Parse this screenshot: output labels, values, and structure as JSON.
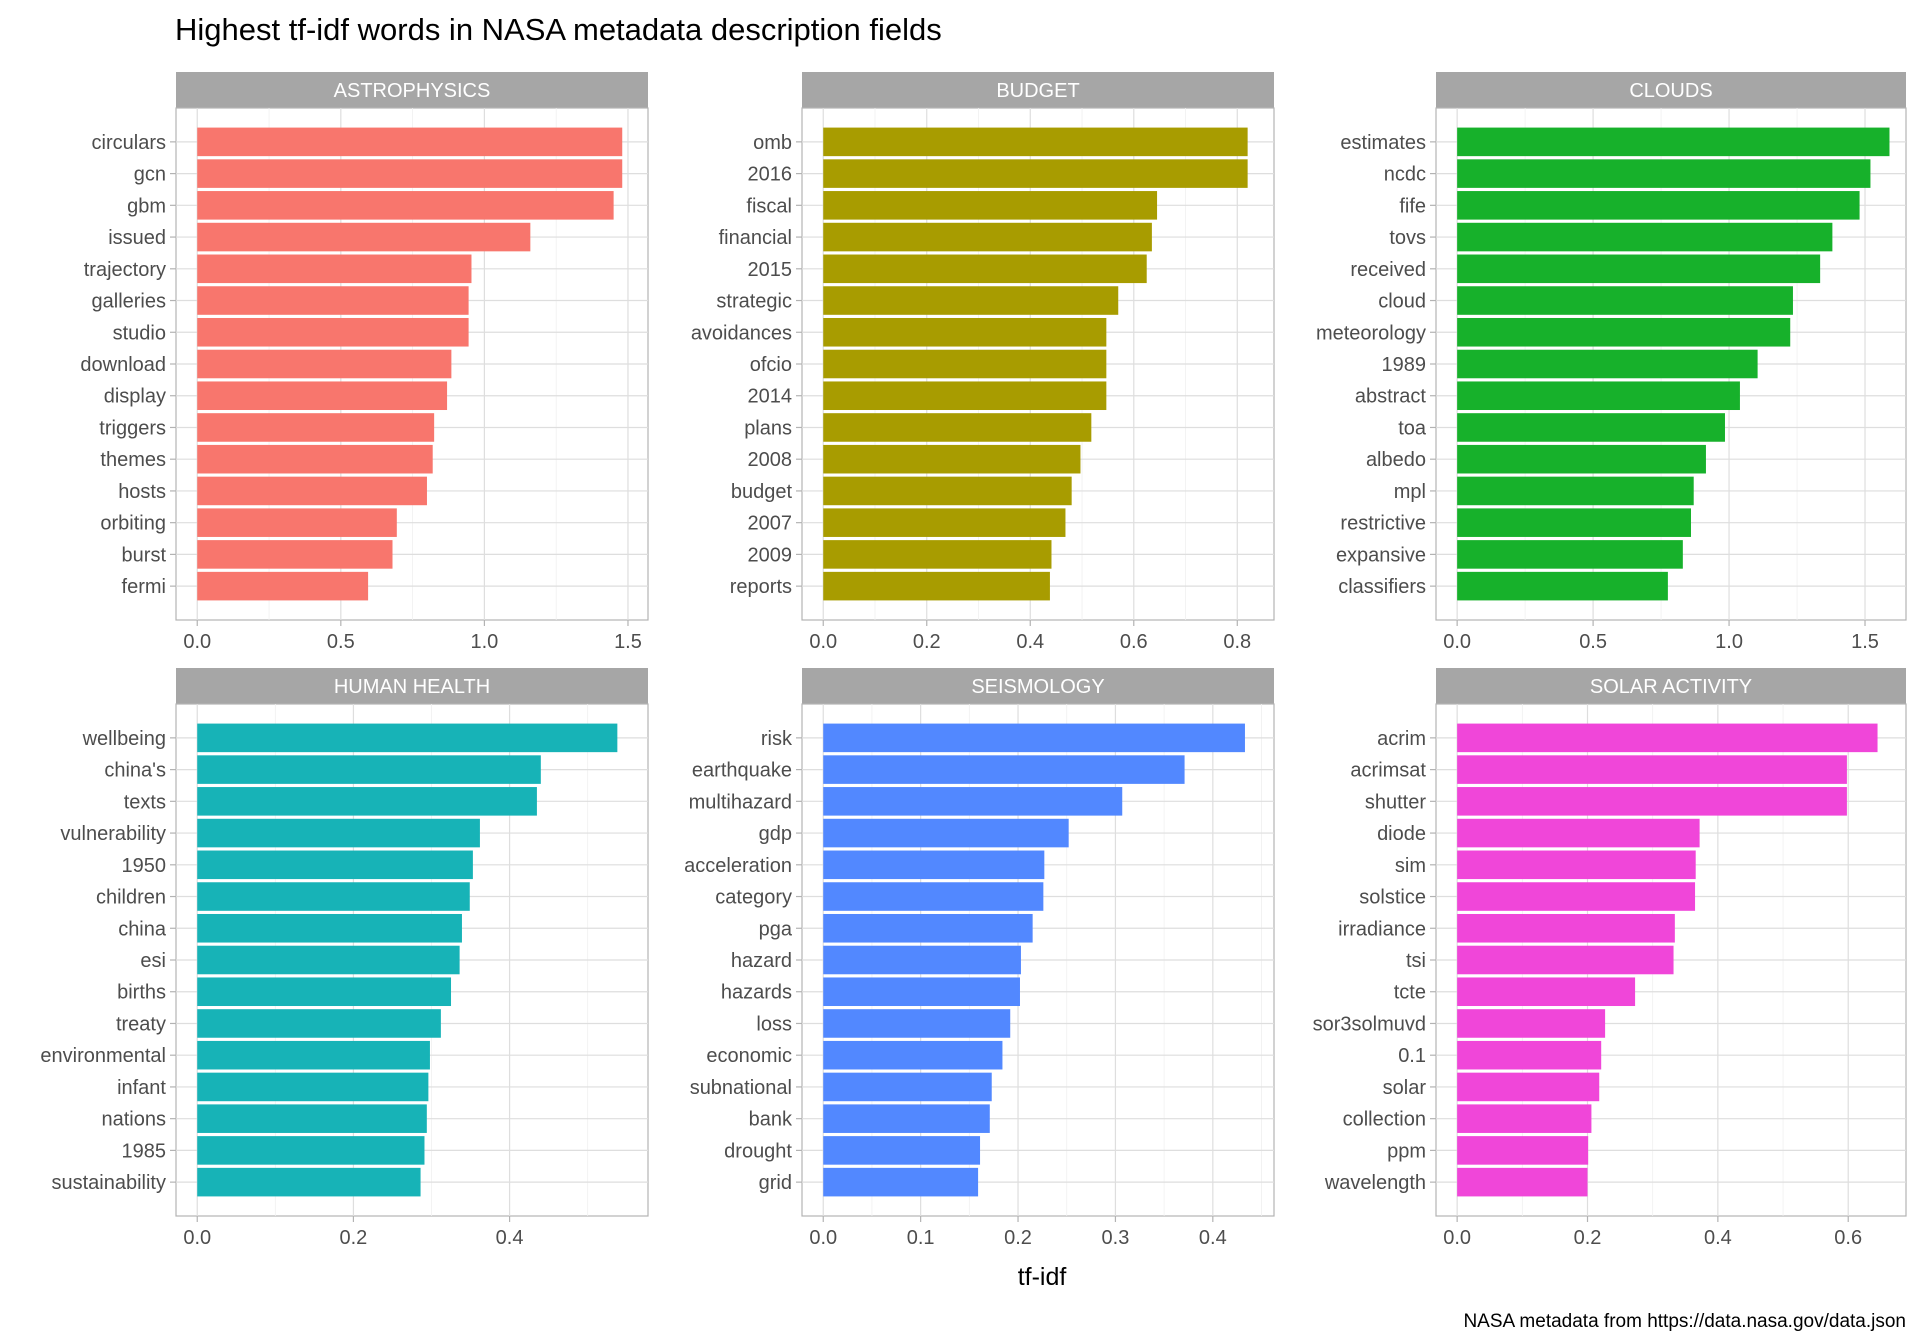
{
  "chart_data": {
    "type": "bar",
    "orientation": "horizontal",
    "title": "Highest tf-idf words in NASA metadata description fields",
    "xlabel": "tf-idf",
    "ylabel": "",
    "caption": "NASA metadata from https://data.nasa.gov/data.json",
    "grid": true,
    "panels": [
      {
        "name": "ASTROPHYSICS",
        "color": "#F8766D",
        "xlim": [
          0,
          1.55
        ],
        "ticks": [
          "0.0",
          "0.5",
          "1.0",
          "1.5"
        ],
        "categories": [
          "circulars",
          "gcn",
          "gbm",
          "issued",
          "trajectory",
          "galleries",
          "studio",
          "download",
          "display",
          "triggers",
          "themes",
          "hosts",
          "orbiting",
          "burst",
          "fermi"
        ],
        "values": [
          1.48,
          1.48,
          1.45,
          1.16,
          0.955,
          0.945,
          0.945,
          0.885,
          0.87,
          0.825,
          0.82,
          0.8,
          0.695,
          0.68,
          0.595
        ]
      },
      {
        "name": "BUDGET",
        "color": "#A89C00",
        "xlim": [
          0,
          0.86
        ],
        "ticks": [
          "0.0",
          "0.2",
          "0.4",
          "0.6",
          "0.8"
        ],
        "categories": [
          "omb",
          "2016",
          "fiscal",
          "financial",
          "2015",
          "strategic",
          "avoidances",
          "ofcio",
          "2014",
          "plans",
          "2008",
          "budget",
          "2007",
          "2009",
          "reports"
        ],
        "values": [
          0.82,
          0.82,
          0.645,
          0.635,
          0.625,
          0.57,
          0.547,
          0.547,
          0.547,
          0.518,
          0.497,
          0.48,
          0.468,
          0.441,
          0.438
        ]
      },
      {
        "name": "CLOUDS",
        "color": "#17B12B",
        "xlim": [
          0,
          1.63
        ],
        "ticks": [
          "0.0",
          "0.5",
          "1.0",
          "1.5"
        ],
        "categories": [
          "estimates",
          "ncdc",
          "fife",
          "tovs",
          "received",
          "cloud",
          "meteorology",
          "1989",
          "abstract",
          "toa",
          "albedo",
          "mpl",
          "restrictive",
          "expansive",
          "classifiers"
        ],
        "values": [
          1.59,
          1.52,
          1.48,
          1.38,
          1.335,
          1.235,
          1.225,
          1.105,
          1.04,
          0.985,
          0.915,
          0.87,
          0.86,
          0.83,
          0.775
        ]
      },
      {
        "name": "HUMAN HEALTH",
        "color": "#17B3B7",
        "xlim": [
          0,
          0.57
        ],
        "ticks": [
          "0.0",
          "0.2",
          "0.4"
        ],
        "categories": [
          "wellbeing",
          "china's",
          "texts",
          "vulnerability",
          "1950",
          "children",
          "china",
          "esi",
          "births",
          "treaty",
          "environmental",
          "infant",
          "nations",
          "1985",
          "sustainability"
        ],
        "values": [
          0.538,
          0.44,
          0.435,
          0.362,
          0.353,
          0.349,
          0.339,
          0.336,
          0.325,
          0.312,
          0.298,
          0.296,
          0.294,
          0.291,
          0.286
        ]
      },
      {
        "name": "SEISMOLOGY",
        "color": "#5288FF",
        "xlim": [
          0,
          0.457
        ],
        "ticks": [
          "0.0",
          "0.1",
          "0.2",
          "0.3",
          "0.4"
        ],
        "categories": [
          "risk",
          "earthquake",
          "multihazard",
          "gdp",
          "acceleration",
          "category",
          "pga",
          "hazard",
          "hazards",
          "loss",
          "economic",
          "subnational",
          "bank",
          "drought",
          "grid"
        ],
        "values": [
          0.433,
          0.371,
          0.307,
          0.252,
          0.227,
          0.226,
          0.215,
          0.203,
          0.202,
          0.192,
          0.184,
          0.173,
          0.171,
          0.161,
          0.159
        ]
      },
      {
        "name": "SOLAR ACTIVITY",
        "color": "#F046D9",
        "xlim": [
          0,
          0.68
        ],
        "ticks": [
          "0.0",
          "0.2",
          "0.4",
          "0.6"
        ],
        "categories": [
          "acrim",
          "acrimsat",
          "shutter",
          "diode",
          "sim",
          "solstice",
          "irradiance",
          "tsi",
          "tcte",
          "sor3solmuvd",
          "0.1",
          "solar",
          "collection",
          "ppm",
          "wavelength"
        ],
        "values": [
          0.645,
          0.598,
          0.598,
          0.372,
          0.366,
          0.365,
          0.334,
          0.332,
          0.273,
          0.227,
          0.221,
          0.218,
          0.206,
          0.201,
          0.2
        ]
      }
    ]
  }
}
